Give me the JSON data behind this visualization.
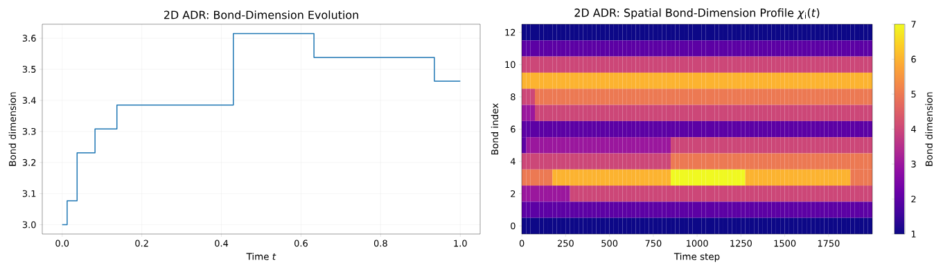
{
  "chart_data": [
    {
      "type": "step",
      "title": "2D ADR: Bond-Dimension Evolution",
      "xlabel": "Time *t*",
      "ylabel": "Bond dimension",
      "x": [
        0,
        0.0125,
        0.0375,
        0.0825,
        0.1375,
        0.43,
        0.6325,
        0.935,
        1.0
      ],
      "values": [
        3.0,
        3.077,
        3.231,
        3.308,
        3.385,
        3.615,
        3.538,
        3.462,
        3.462
      ],
      "color": "#1f77b4",
      "xlim": [
        -0.05,
        1.05
      ],
      "ylim": [
        2.97,
        3.645
      ],
      "xticks": [
        {
          "value": 0,
          "label": "0.0"
        },
        0.2,
        0.4,
        0.6,
        0.8,
        {
          "value": 1,
          "label": "1.0"
        }
      ],
      "yticks": [
        {
          "value": 3,
          "label": "3.0"
        },
        3.1,
        3.2,
        3.3,
        3.4,
        3.5,
        3.6
      ],
      "grid": true
    },
    {
      "type": "heatmap",
      "title": "2D ADR: Spatial Bond-Dimension Profile *χ*$_{i}$(*t*)",
      "xlabel": "Time step",
      "ylabel": "Bond index",
      "clabel": "Bond dimension",
      "x": [
        12,
        37,
        62,
        87,
        112,
        137,
        162,
        187,
        212,
        237,
        262,
        287,
        312,
        337,
        362,
        387,
        412,
        437,
        462,
        487,
        512,
        537,
        562,
        587,
        612,
        637,
        662,
        687,
        712,
        737,
        762,
        787,
        812,
        837,
        862,
        887,
        912,
        937,
        962,
        987,
        1012,
        1037,
        1062,
        1087,
        1112,
        1137,
        1162,
        1187,
        1212,
        1237,
        1262,
        1287,
        1312,
        1337,
        1362,
        1387,
        1412,
        1437,
        1462,
        1487,
        1512,
        1537,
        1562,
        1587,
        1612,
        1637,
        1662,
        1687,
        1712,
        1737,
        1762,
        1787,
        1812,
        1837,
        1862,
        1887,
        1912,
        1937,
        1962,
        1987
      ],
      "cells": [
        [
          1,
          1,
          1,
          1,
          1,
          1,
          1,
          1,
          1,
          1,
          1,
          1,
          1,
          1,
          1,
          1,
          1,
          1,
          1,
          1,
          1,
          1,
          1,
          1,
          1,
          1,
          1,
          1,
          1,
          1,
          1,
          1,
          1,
          1,
          1,
          1,
          1,
          1,
          1,
          1,
          1,
          1,
          1,
          1,
          1,
          1,
          1,
          1,
          1,
          1,
          1,
          1,
          1,
          1,
          1,
          1,
          1,
          1,
          1,
          1,
          1,
          1,
          1,
          1,
          1,
          1,
          1,
          1,
          1,
          1,
          1,
          1,
          1,
          1,
          1,
          1,
          1,
          1,
          1,
          1
        ],
        [
          2,
          2,
          2,
          2,
          2,
          2,
          2,
          2,
          2,
          2,
          2,
          2,
          2,
          2,
          2,
          2,
          2,
          2,
          2,
          2,
          2,
          2,
          2,
          2,
          2,
          2,
          2,
          2,
          2,
          2,
          2,
          2,
          2,
          2,
          2,
          2,
          2,
          2,
          2,
          2,
          2,
          2,
          2,
          2,
          2,
          2,
          2,
          2,
          2,
          2,
          2,
          2,
          2,
          2,
          2,
          2,
          2,
          2,
          2,
          2,
          2,
          2,
          2,
          2,
          2,
          2,
          2,
          2,
          2,
          2,
          2,
          2,
          2,
          2,
          2,
          2,
          2,
          2,
          2,
          2
        ],
        [
          4,
          4,
          4,
          4,
          4,
          4,
          4,
          4,
          4,
          4,
          4,
          4,
          4,
          4,
          4,
          4,
          4,
          4,
          4,
          4,
          4,
          4,
          4,
          4,
          4,
          4,
          4,
          4,
          4,
          4,
          4,
          4,
          4,
          4,
          4,
          4,
          4,
          4,
          4,
          4,
          4,
          4,
          4,
          4,
          4,
          4,
          4,
          4,
          4,
          4,
          4,
          4,
          4,
          4,
          4,
          4,
          4,
          4,
          4,
          4,
          4,
          4,
          4,
          4,
          4,
          4,
          4,
          4,
          4,
          4,
          4,
          4,
          4,
          4,
          4,
          4,
          4,
          4,
          4,
          4
        ],
        [
          6,
          6,
          6,
          6,
          6,
          6,
          6,
          6,
          6,
          6,
          6,
          6,
          6,
          6,
          6,
          6,
          6,
          6,
          6,
          6,
          6,
          6,
          6,
          6,
          6,
          6,
          6,
          6,
          6,
          6,
          6,
          6,
          6,
          6,
          6,
          6,
          6,
          6,
          6,
          6,
          6,
          6,
          6,
          6,
          6,
          6,
          6,
          6,
          6,
          6,
          6,
          6,
          6,
          6,
          6,
          6,
          6,
          6,
          6,
          6,
          6,
          6,
          6,
          6,
          6,
          6,
          6,
          6,
          6,
          6,
          6,
          6,
          6,
          6,
          6,
          6,
          6,
          6,
          6,
          6
        ],
        [
          4,
          4,
          4,
          5,
          5,
          5,
          5,
          5,
          5,
          5,
          5,
          5,
          5,
          5,
          5,
          5,
          5,
          5,
          5,
          5,
          5,
          5,
          5,
          5,
          5,
          5,
          5,
          5,
          5,
          5,
          5,
          5,
          5,
          5,
          5,
          5,
          5,
          5,
          5,
          5,
          5,
          5,
          5,
          5,
          5,
          5,
          5,
          5,
          5,
          5,
          5,
          5,
          5,
          5,
          5,
          5,
          5,
          5,
          5,
          5,
          5,
          5,
          5,
          5,
          5,
          5,
          5,
          5,
          5,
          5,
          5,
          5,
          5,
          5,
          5,
          5,
          5,
          5,
          5,
          5
        ],
        [
          3,
          3,
          3,
          4,
          4,
          4,
          4,
          4,
          4,
          4,
          4,
          4,
          4,
          4,
          4,
          4,
          4,
          4,
          4,
          4,
          4,
          4,
          4,
          4,
          4,
          4,
          4,
          4,
          4,
          4,
          4,
          4,
          4,
          4,
          4,
          4,
          4,
          4,
          4,
          4,
          4,
          4,
          4,
          4,
          4,
          4,
          4,
          4,
          4,
          4,
          4,
          4,
          4,
          4,
          4,
          4,
          4,
          4,
          4,
          4,
          4,
          4,
          4,
          4,
          4,
          4,
          4,
          4,
          4,
          4,
          4,
          4,
          4,
          4,
          4,
          4,
          4,
          4,
          4,
          4
        ],
        [
          2,
          2,
          2,
          2,
          2,
          2,
          2,
          2,
          2,
          2,
          2,
          2,
          2,
          2,
          2,
          2,
          2,
          2,
          2,
          2,
          2,
          2,
          2,
          2,
          2,
          2,
          2,
          2,
          2,
          2,
          2,
          2,
          2,
          2,
          2,
          2,
          2,
          2,
          2,
          2,
          2,
          2,
          2,
          2,
          2,
          2,
          2,
          2,
          2,
          2,
          2,
          2,
          2,
          2,
          2,
          2,
          2,
          2,
          2,
          2,
          2,
          2,
          2,
          2,
          2,
          2,
          2,
          2,
          2,
          2,
          2,
          2,
          2,
          2,
          2,
          2,
          2,
          2,
          2,
          2
        ],
        [
          2,
          3,
          3,
          3,
          3,
          3,
          3,
          3,
          3,
          3,
          3,
          3,
          3,
          3,
          3,
          3,
          3,
          3,
          3,
          3,
          3,
          3,
          3,
          3,
          3,
          3,
          3,
          3,
          3,
          3,
          3,
          3,
          3,
          3,
          4,
          4,
          4,
          4,
          4,
          4,
          4,
          4,
          4,
          4,
          4,
          4,
          4,
          4,
          4,
          4,
          4,
          4,
          4,
          4,
          4,
          4,
          4,
          4,
          4,
          4,
          4,
          4,
          4,
          4,
          4,
          4,
          4,
          4,
          4,
          4,
          4,
          4,
          4,
          4,
          4,
          4,
          4,
          4,
          4,
          4
        ],
        [
          4,
          4,
          4,
          4,
          4,
          4,
          4,
          4,
          4,
          4,
          4,
          4,
          4,
          4,
          4,
          4,
          4,
          4,
          4,
          4,
          4,
          4,
          4,
          4,
          4,
          4,
          4,
          4,
          4,
          4,
          4,
          4,
          4,
          4,
          5,
          5,
          5,
          5,
          5,
          5,
          5,
          5,
          5,
          5,
          5,
          5,
          5,
          5,
          5,
          5,
          5,
          5,
          5,
          5,
          5,
          5,
          5,
          5,
          5,
          5,
          5,
          5,
          5,
          5,
          5,
          5,
          5,
          5,
          5,
          5,
          5,
          5,
          5,
          5,
          5,
          5,
          5,
          5,
          5,
          5
        ],
        [
          5,
          5,
          5,
          5,
          5,
          5,
          5,
          6,
          6,
          6,
          6,
          6,
          6,
          6,
          6,
          6,
          6,
          6,
          6,
          6,
          6,
          6,
          6,
          6,
          6,
          6,
          6,
          6,
          6,
          6,
          6,
          6,
          6,
          6,
          7,
          7,
          7,
          7,
          7,
          7,
          7,
          7,
          7,
          7,
          7,
          7,
          7,
          7,
          7,
          7,
          7,
          6,
          6,
          6,
          6,
          6,
          6,
          6,
          6,
          6,
          6,
          6,
          6,
          6,
          6,
          6,
          6,
          6,
          6,
          6,
          6,
          6,
          6,
          6,
          6,
          5,
          5,
          5,
          5,
          5
        ],
        [
          3,
          3,
          3,
          3,
          3,
          3,
          3,
          3,
          3,
          3,
          3,
          4,
          4,
          4,
          4,
          4,
          4,
          4,
          4,
          4,
          4,
          4,
          4,
          4,
          4,
          4,
          4,
          4,
          4,
          4,
          4,
          4,
          4,
          4,
          4,
          4,
          4,
          4,
          4,
          4,
          4,
          4,
          4,
          4,
          4,
          4,
          4,
          4,
          4,
          4,
          4,
          4,
          4,
          4,
          4,
          4,
          4,
          4,
          4,
          4,
          4,
          4,
          4,
          4,
          4,
          4,
          4,
          4,
          4,
          4,
          4,
          4,
          4,
          4,
          4,
          4,
          4,
          4,
          4,
          4
        ],
        [
          2,
          2,
          2,
          2,
          2,
          2,
          2,
          2,
          2,
          2,
          2,
          2,
          2,
          2,
          2,
          2,
          2,
          2,
          2,
          2,
          2,
          2,
          2,
          2,
          2,
          2,
          2,
          2,
          2,
          2,
          2,
          2,
          2,
          2,
          2,
          2,
          2,
          2,
          2,
          2,
          2,
          2,
          2,
          2,
          2,
          2,
          2,
          2,
          2,
          2,
          2,
          2,
          2,
          2,
          2,
          2,
          2,
          2,
          2,
          2,
          2,
          2,
          2,
          2,
          2,
          2,
          2,
          2,
          2,
          2,
          2,
          2,
          2,
          2,
          2,
          2,
          2,
          2,
          2,
          2
        ],
        [
          1,
          1,
          1,
          1,
          1,
          1,
          1,
          1,
          1,
          1,
          1,
          1,
          1,
          1,
          1,
          1,
          1,
          1,
          1,
          1,
          1,
          1,
          1,
          1,
          1,
          1,
          1,
          1,
          1,
          1,
          1,
          1,
          1,
          1,
          1,
          1,
          1,
          1,
          1,
          1,
          1,
          1,
          1,
          1,
          1,
          1,
          1,
          1,
          1,
          1,
          1,
          1,
          1,
          1,
          1,
          1,
          1,
          1,
          1,
          1,
          1,
          1,
          1,
          1,
          1,
          1,
          1,
          1,
          1,
          1,
          1,
          1,
          1,
          1,
          1,
          1,
          1,
          1,
          1,
          1
        ]
      ],
      "xlim": [
        -0.5,
        1999.5
      ],
      "ylim": [
        -0.5,
        12.5
      ],
      "xticks": [
        0,
        250,
        500,
        750,
        1000,
        1250,
        1500,
        1750
      ],
      "yticks": [
        0,
        2,
        4,
        6,
        8,
        10,
        12
      ],
      "clim": [
        1,
        7
      ],
      "cticks": [
        1,
        2,
        3,
        4,
        5,
        6,
        7
      ]
    }
  ]
}
